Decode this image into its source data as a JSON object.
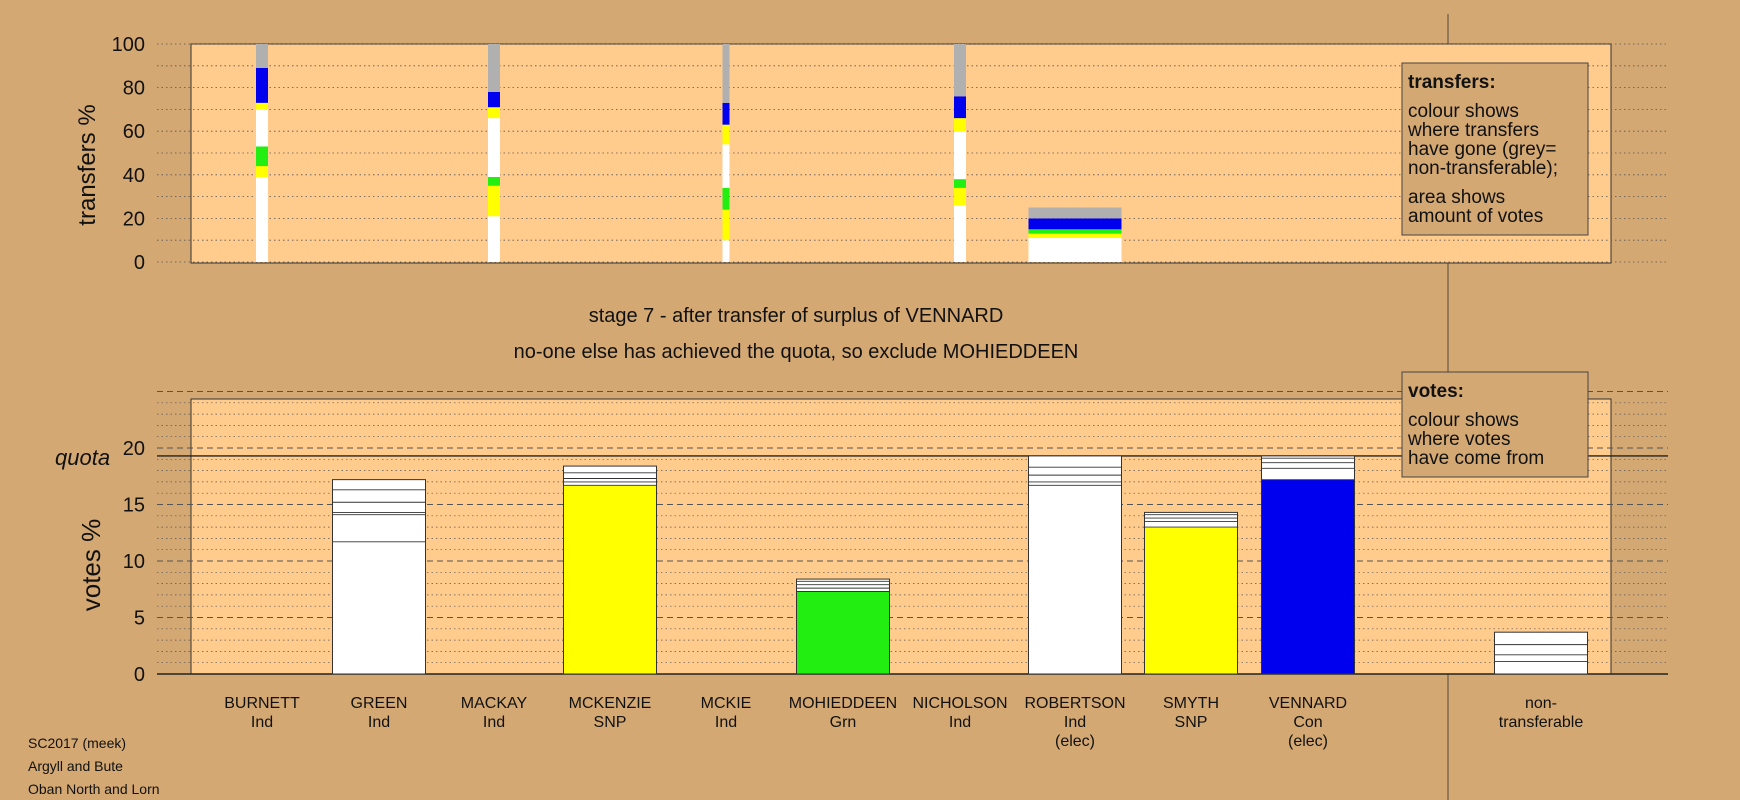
{
  "chart_data": [
    {
      "type": "bar",
      "ylabel": "transfers %",
      "ylim": [
        0,
        100
      ],
      "yticks": [
        0,
        20,
        40,
        60,
        80,
        100
      ],
      "grid": "dotted, every 10",
      "colors": {
        "white": "#ffffff",
        "yellow": "#ffff00",
        "green": "#22ee11",
        "blue": "#0000ee",
        "grey": "#b0b0b0"
      },
      "categories": [
        "BURNETT",
        "GREEN",
        "MACKAY",
        "MCKENZIE",
        "MCKIE",
        "MOHIEDDEEN",
        "NICHOLSON",
        "ROBERTSON",
        "SMYTH",
        "VENNARD",
        "non-transferable"
      ],
      "series": [
        {
          "category": "BURNETT",
          "width_share": "narrow",
          "segments": [
            {
              "color": "white",
              "from": 0,
              "to": 39
            },
            {
              "color": "yellow",
              "from": 39,
              "to": 44
            },
            {
              "color": "green",
              "from": 44,
              "to": 53
            },
            {
              "color": "white",
              "from": 53,
              "to": 70
            },
            {
              "color": "yellow",
              "from": 70,
              "to": 73
            },
            {
              "color": "blue",
              "from": 73,
              "to": 89
            },
            {
              "color": "grey",
              "from": 89,
              "to": 100
            }
          ]
        },
        {
          "category": "MACKAY",
          "width_share": "narrow",
          "segments": [
            {
              "color": "white",
              "from": 0,
              "to": 21
            },
            {
              "color": "yellow",
              "from": 21,
              "to": 35
            },
            {
              "color": "green",
              "from": 35,
              "to": 39
            },
            {
              "color": "white",
              "from": 39,
              "to": 66
            },
            {
              "color": "yellow",
              "from": 66,
              "to": 71
            },
            {
              "color": "blue",
              "from": 71,
              "to": 78
            },
            {
              "color": "grey",
              "from": 78,
              "to": 100
            }
          ]
        },
        {
          "category": "MCKIE",
          "width_share": "very narrow",
          "segments": [
            {
              "color": "white",
              "from": 0,
              "to": 10
            },
            {
              "color": "yellow",
              "from": 10,
              "to": 24
            },
            {
              "color": "green",
              "from": 24,
              "to": 34
            },
            {
              "color": "white",
              "from": 34,
              "to": 54
            },
            {
              "color": "yellow",
              "from": 54,
              "to": 63
            },
            {
              "color": "blue",
              "from": 63,
              "to": 73
            },
            {
              "color": "grey",
              "from": 73,
              "to": 100
            }
          ]
        },
        {
          "category": "NICHOLSON",
          "width_share": "narrow",
          "segments": [
            {
              "color": "white",
              "from": 0,
              "to": 26
            },
            {
              "color": "yellow",
              "from": 26,
              "to": 34
            },
            {
              "color": "green",
              "from": 34,
              "to": 38
            },
            {
              "color": "white",
              "from": 38,
              "to": 60
            },
            {
              "color": "yellow",
              "from": 60,
              "to": 66
            },
            {
              "color": "blue",
              "from": 66,
              "to": 76
            },
            {
              "color": "grey",
              "from": 76,
              "to": 100
            }
          ]
        },
        {
          "category": "ROBERTSON",
          "width_share": "full",
          "segments": [
            {
              "color": "white",
              "from": 0,
              "to": 11
            },
            {
              "color": "yellow",
              "from": 11,
              "to": 13
            },
            {
              "color": "green",
              "from": 13,
              "to": 15
            },
            {
              "color": "blue",
              "from": 15,
              "to": 20
            },
            {
              "color": "grey",
              "from": 20,
              "to": 25
            }
          ]
        }
      ]
    },
    {
      "type": "bar",
      "ylabel": "votes %",
      "ylim": [
        0,
        25
      ],
      "yticks": [
        0,
        5,
        10,
        15,
        20
      ],
      "quota": 19.3,
      "grid": "dashed every 5, dotted every 1",
      "colors": {
        "white": "#ffffff",
        "yellow": "#ffff00",
        "green": "#22ee11",
        "blue": "#0000ee"
      },
      "categories": [
        "BURNETT",
        "GREEN",
        "MACKAY",
        "MCKENZIE",
        "MCKIE",
        "MOHIEDDEEN",
        "NICHOLSON",
        "ROBERTSON",
        "SMYTH",
        "VENNARD",
        "non-transferable"
      ],
      "values": [
        0,
        17.2,
        0,
        18.4,
        0,
        8.4,
        0,
        19.3,
        14.3,
        19.3,
        3.7
      ],
      "base_colors": [
        "white",
        "white",
        "white",
        "yellow",
        "white",
        "green",
        "white",
        "white",
        "yellow",
        "blue",
        "white"
      ],
      "segment_lines": [
        [],
        [
          11.7,
          14.1,
          14.3,
          15.2,
          16.3
        ],
        [],
        [
          16.7,
          17.0,
          17.3,
          17.8
        ],
        [],
        [
          7.3,
          7.6,
          7.9,
          8.2
        ],
        [],
        [
          16.7,
          17.0,
          17.6,
          18.3
        ],
        [
          13.0,
          13.5,
          13.8,
          14.1
        ],
        [
          17.2,
          18.2,
          18.7,
          19.1
        ],
        [
          1.1,
          1.7,
          2.6
        ]
      ]
    }
  ],
  "stage_text": {
    "line1": "stage 7 - after transfer of surplus of VENNARD",
    "line2": "no-one else has achieved the quota, so exclude MOHIEDDEEN"
  },
  "quota_label": "quota",
  "legend_transfers": {
    "title": "transfers:",
    "text1": [
      "colour shows",
      "where transfers",
      "have gone (grey=",
      "non-transferable);"
    ],
    "text2": [
      "area shows",
      "amount of votes"
    ]
  },
  "legend_votes": {
    "title": "votes:",
    "text1": [
      "colour shows",
      "where votes",
      "have come from"
    ]
  },
  "candidates": [
    {
      "name": "BURNETT",
      "party": "Ind",
      "note": ""
    },
    {
      "name": "GREEN",
      "party": "Ind",
      "note": ""
    },
    {
      "name": "MACKAY",
      "party": "Ind",
      "note": ""
    },
    {
      "name": "MCKENZIE",
      "party": "SNP",
      "note": ""
    },
    {
      "name": "MCKIE",
      "party": "Ind",
      "note": ""
    },
    {
      "name": "MOHIEDDEEN",
      "party": "Grn",
      "note": ""
    },
    {
      "name": "NICHOLSON",
      "party": "Ind",
      "note": ""
    },
    {
      "name": "ROBERTSON",
      "party": "Ind",
      "note": "(elec)"
    },
    {
      "name": "SMYTH",
      "party": "SNP",
      "note": ""
    },
    {
      "name": "VENNARD",
      "party": "Con",
      "note": "(elec)"
    },
    {
      "name": "non-",
      "party": "transferable",
      "note": ""
    }
  ],
  "footer": [
    "SC2017 (meek)",
    "Argyll and Bute",
    "Oban North and Lorn"
  ]
}
